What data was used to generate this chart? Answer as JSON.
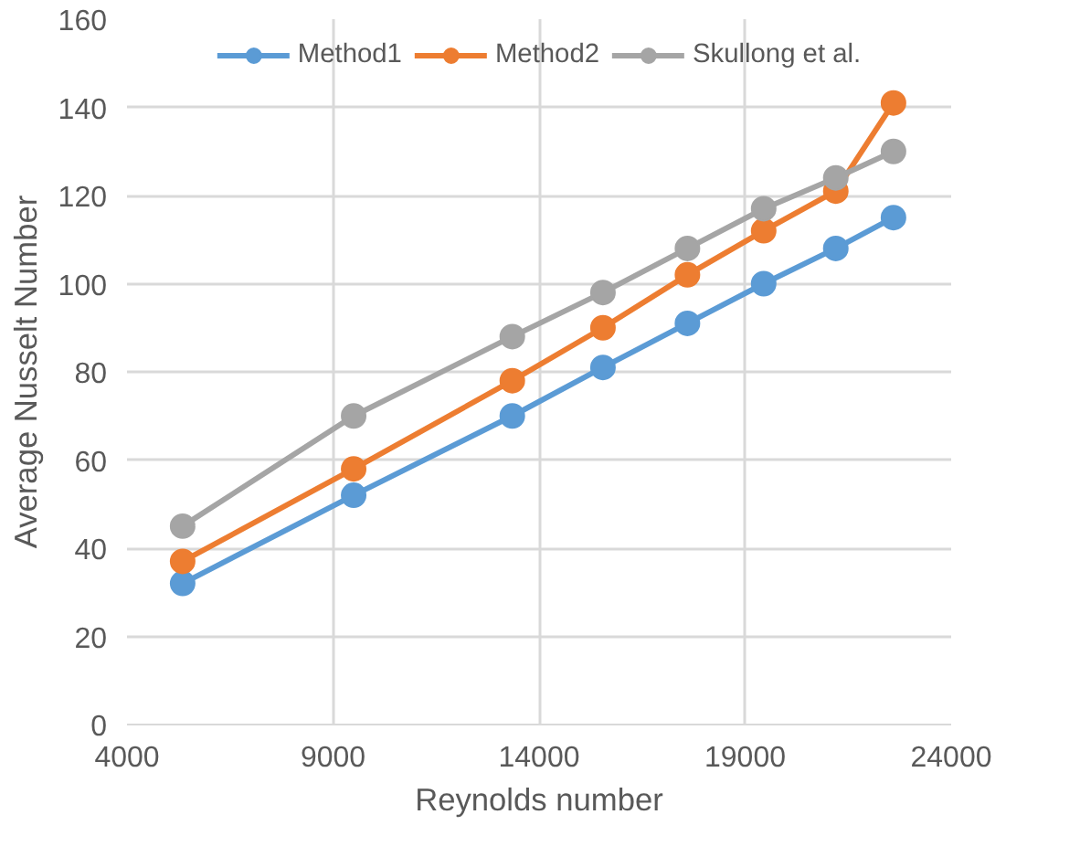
{
  "chart_data": {
    "type": "line",
    "xlabel": "Reynolds number",
    "ylabel": "Average Nusselt Number",
    "x": [
      5350,
      9500,
      13350,
      15550,
      17600,
      19450,
      21200,
      22600
    ],
    "series": [
      {
        "name": "Method1",
        "color": "#5b9bd5",
        "values": [
          32,
          52,
          70,
          81,
          91,
          100,
          108,
          115
        ]
      },
      {
        "name": "Method2",
        "color": "#ed7d31",
        "values": [
          37,
          58,
          78,
          90,
          102,
          112,
          121,
          141
        ]
      },
      {
        "name": "Skullong et al.",
        "color": "#a5a5a5",
        "values": [
          45,
          70,
          88,
          98,
          108,
          117,
          124,
          130
        ]
      }
    ],
    "xlim": [
      4000,
      24000
    ],
    "xticks": [
      4000,
      9000,
      14000,
      19000,
      24000
    ],
    "ylim": [
      0,
      160
    ],
    "yticks": [
      0,
      20,
      40,
      60,
      80,
      100,
      120,
      140,
      160
    ],
    "grid": true,
    "legend": "top",
    "marker": "circle",
    "line_style": "solid"
  }
}
